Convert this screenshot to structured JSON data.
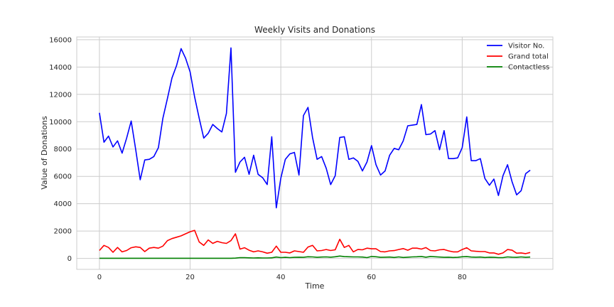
{
  "chart_data": {
    "type": "line",
    "title": "Weekly Visits and Donations",
    "xlabel": "Time",
    "ylabel": "Value of Donations",
    "xlim": [
      -5,
      100
    ],
    "ylim": [
      -800,
      16200
    ],
    "xticks": [
      0,
      20,
      40,
      60,
      80
    ],
    "yticks": [
      0,
      2000,
      4000,
      6000,
      8000,
      10000,
      12000,
      14000,
      16000
    ],
    "grid": true,
    "legend_position": "top-right",
    "series": [
      {
        "name": "Visitor No.",
        "color": "#0000ff",
        "values": [
          10650,
          8500,
          8950,
          8150,
          8600,
          7700,
          8800,
          10050,
          7950,
          5750,
          7200,
          7250,
          7450,
          8100,
          10250,
          11700,
          13200,
          14100,
          15350,
          14650,
          13650,
          11800,
          10250,
          8800,
          9150,
          9800,
          9500,
          9250,
          10600,
          15400,
          6300,
          7050,
          7400,
          6150,
          7550,
          6150,
          5900,
          5400,
          8900,
          3700,
          5850,
          7250,
          7650,
          7750,
          6100,
          10450,
          11050,
          8850,
          7250,
          7450,
          6600,
          5400,
          6050,
          8850,
          8900,
          7250,
          7350,
          7100,
          6400,
          7050,
          8250,
          6850,
          6100,
          6400,
          7550,
          8050,
          7950,
          8600,
          9700,
          9750,
          9800,
          11250,
          9050,
          9100,
          9350,
          7950,
          9350,
          7300,
          7300,
          7350,
          8100,
          10350,
          7150,
          7150,
          7300,
          5850,
          5350,
          5800,
          4600,
          6050,
          6850,
          5600,
          4650,
          4950,
          6200,
          6450
        ]
      },
      {
        "name": "Grand total",
        "color": "#ff0000",
        "values": [
          580,
          950,
          800,
          450,
          800,
          480,
          580,
          780,
          850,
          800,
          500,
          750,
          800,
          750,
          900,
          1300,
          1450,
          1550,
          1650,
          1800,
          1950,
          2050,
          1200,
          950,
          1350,
          1100,
          1250,
          1150,
          1100,
          1300,
          1800,
          680,
          780,
          600,
          480,
          550,
          480,
          380,
          450,
          900,
          450,
          450,
          400,
          550,
          500,
          450,
          830,
          950,
          550,
          580,
          650,
          580,
          630,
          1400,
          800,
          950,
          480,
          650,
          630,
          750,
          700,
          700,
          500,
          480,
          550,
          570,
          650,
          720,
          600,
          750,
          750,
          680,
          790,
          580,
          550,
          630,
          650,
          550,
          480,
          480,
          650,
          780,
          550,
          520,
          500,
          500,
          400,
          400,
          300,
          400,
          650,
          600,
          380,
          400,
          350,
          430
        ]
      },
      {
        "name": "Contactless",
        "color": "#008000",
        "values": [
          10,
          10,
          10,
          10,
          10,
          10,
          10,
          10,
          10,
          10,
          10,
          10,
          10,
          10,
          10,
          10,
          10,
          10,
          10,
          10,
          10,
          10,
          10,
          10,
          10,
          10,
          10,
          10,
          10,
          10,
          20,
          60,
          50,
          40,
          30,
          40,
          30,
          30,
          40,
          100,
          60,
          80,
          60,
          80,
          90,
          80,
          120,
          110,
          80,
          100,
          110,
          90,
          120,
          170,
          130,
          120,
          110,
          110,
          100,
          60,
          140,
          120,
          80,
          90,
          100,
          70,
          110,
          70,
          90,
          110,
          120,
          140,
          90,
          140,
          120,
          100,
          80,
          90,
          70,
          80,
          120,
          130,
          100,
          90,
          100,
          70,
          90,
          80,
          60,
          60,
          110,
          90,
          80,
          110,
          80,
          100
        ]
      }
    ]
  }
}
